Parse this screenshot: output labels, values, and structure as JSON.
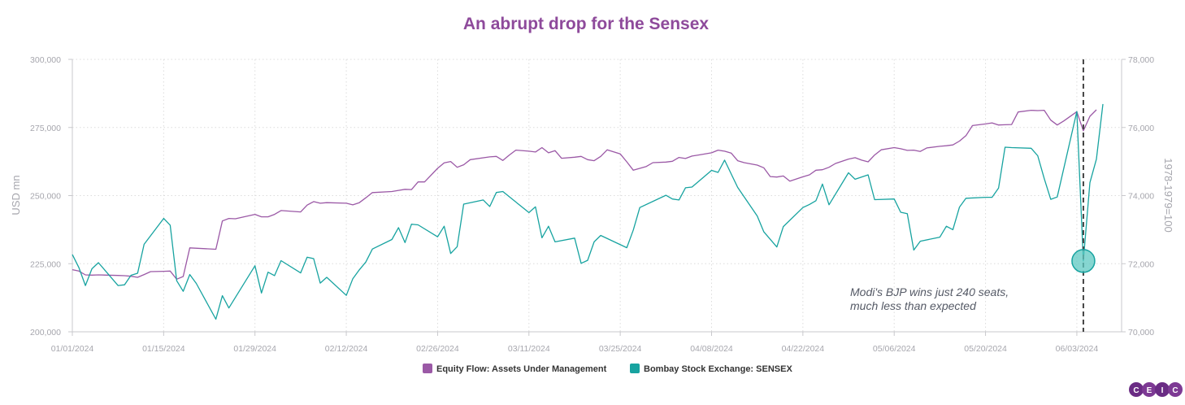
{
  "chart_data": {
    "type": "line",
    "title": "An abrupt drop for the Sensex",
    "ylabel_left": "USD mn",
    "ylabel_right": "1978-1979=100",
    "ylim_left": [
      200000,
      300000
    ],
    "ylim_right": [
      70000,
      78000
    ],
    "yticks_left": [
      "200,000",
      "225,000",
      "250,000",
      "275,000",
      "300,000"
    ],
    "yticks_right": [
      "70,000",
      "72,000",
      "74,000",
      "76,000",
      "78,000"
    ],
    "xlim": [
      "2024-01-01",
      "2024-06-06"
    ],
    "xticks": [
      {
        "date": "2024-01-01",
        "label": "01/01/2024"
      },
      {
        "date": "2024-01-15",
        "label": "01/15/2024"
      },
      {
        "date": "2024-01-29",
        "label": "01/29/2024"
      },
      {
        "date": "2024-02-12",
        "label": "02/12/2024"
      },
      {
        "date": "2024-02-26",
        "label": "02/26/2024"
      },
      {
        "date": "2024-03-11",
        "label": "03/11/2024"
      },
      {
        "date": "2024-03-25",
        "label": "03/25/2024"
      },
      {
        "date": "2024-04-08",
        "label": "04/08/2024"
      },
      {
        "date": "2024-04-22",
        "label": "04/22/2024"
      },
      {
        "date": "2024-05-06",
        "label": "05/06/2024"
      },
      {
        "date": "2024-05-20",
        "label": "05/20/2024"
      },
      {
        "date": "2024-06-03",
        "label": "06/03/2024"
      }
    ],
    "grid": true,
    "legend_position": "bottom-center",
    "series": [
      {
        "name": "Equity Flow: Assets Under Management",
        "color": "#9b59a6",
        "axis": "left",
        "points": [
          [
            "2024-01-01",
            222800
          ],
          [
            "2024-01-02",
            222300
          ],
          [
            "2024-01-03",
            220900
          ],
          [
            "2024-01-04",
            220800
          ],
          [
            "2024-01-05",
            220900
          ],
          [
            "2024-01-08",
            220700
          ],
          [
            "2024-01-09",
            220600
          ],
          [
            "2024-01-10",
            220400
          ],
          [
            "2024-01-11",
            220000
          ],
          [
            "2024-01-12",
            221000
          ],
          [
            "2024-01-13",
            222100
          ],
          [
            "2024-01-15",
            222200
          ],
          [
            "2024-01-16",
            222300
          ],
          [
            "2024-01-17",
            219300
          ],
          [
            "2024-01-18",
            220300
          ],
          [
            "2024-01-19",
            230800
          ],
          [
            "2024-01-23",
            230300
          ],
          [
            "2024-01-24",
            240700
          ],
          [
            "2024-01-25",
            241600
          ],
          [
            "2024-01-26",
            241500
          ],
          [
            "2024-01-29",
            243100
          ],
          [
            "2024-01-30",
            242200
          ],
          [
            "2024-01-31",
            242200
          ],
          [
            "2024-02-01",
            243100
          ],
          [
            "2024-02-02",
            244500
          ],
          [
            "2024-02-05",
            244000
          ],
          [
            "2024-02-06",
            246500
          ],
          [
            "2024-02-07",
            247800
          ],
          [
            "2024-02-08",
            247200
          ],
          [
            "2024-02-09",
            247400
          ],
          [
            "2024-02-12",
            247200
          ],
          [
            "2024-02-13",
            246600
          ],
          [
            "2024-02-14",
            247400
          ],
          [
            "2024-02-15",
            249200
          ],
          [
            "2024-02-16",
            251100
          ],
          [
            "2024-02-19",
            251500
          ],
          [
            "2024-02-20",
            251900
          ],
          [
            "2024-02-21",
            252300
          ],
          [
            "2024-02-22",
            252200
          ],
          [
            "2024-02-23",
            255000
          ],
          [
            "2024-02-24",
            255000
          ],
          [
            "2024-02-26",
            260000
          ],
          [
            "2024-02-27",
            262000
          ],
          [
            "2024-02-28",
            262500
          ],
          [
            "2024-02-29",
            260400
          ],
          [
            "2024-03-01",
            261300
          ],
          [
            "2024-03-02",
            263200
          ],
          [
            "2024-03-05",
            264200
          ],
          [
            "2024-03-06",
            264400
          ],
          [
            "2024-03-07",
            262900
          ],
          [
            "2024-03-08",
            264900
          ],
          [
            "2024-03-09",
            266700
          ],
          [
            "2024-03-11",
            266300
          ],
          [
            "2024-03-12",
            266000
          ],
          [
            "2024-03-13",
            267600
          ],
          [
            "2024-03-14",
            265700
          ],
          [
            "2024-03-15",
            266500
          ],
          [
            "2024-03-16",
            263700
          ],
          [
            "2024-03-18",
            264100
          ],
          [
            "2024-03-19",
            264400
          ],
          [
            "2024-03-20",
            263200
          ],
          [
            "2024-03-21",
            262800
          ],
          [
            "2024-03-22",
            264400
          ],
          [
            "2024-03-23",
            266800
          ],
          [
            "2024-03-25",
            265300
          ],
          [
            "2024-03-26",
            262400
          ],
          [
            "2024-03-27",
            259300
          ],
          [
            "2024-03-28",
            260000
          ],
          [
            "2024-03-29",
            260700
          ],
          [
            "2024-03-30",
            262100
          ],
          [
            "2024-04-01",
            262300
          ],
          [
            "2024-04-02",
            262600
          ],
          [
            "2024-04-03",
            264000
          ],
          [
            "2024-04-04",
            263600
          ],
          [
            "2024-04-05",
            264500
          ],
          [
            "2024-04-06",
            264900
          ],
          [
            "2024-04-08",
            265700
          ],
          [
            "2024-04-09",
            266700
          ],
          [
            "2024-04-10",
            266300
          ],
          [
            "2024-04-11",
            265600
          ],
          [
            "2024-04-12",
            262800
          ],
          [
            "2024-04-13",
            262100
          ],
          [
            "2024-04-15",
            261200
          ],
          [
            "2024-04-16",
            260200
          ],
          [
            "2024-04-17",
            257000
          ],
          [
            "2024-04-18",
            256800
          ],
          [
            "2024-04-19",
            257200
          ],
          [
            "2024-04-20",
            255300
          ],
          [
            "2024-04-22",
            256900
          ],
          [
            "2024-04-23",
            257600
          ],
          [
            "2024-04-24",
            259300
          ],
          [
            "2024-04-25",
            259500
          ],
          [
            "2024-04-26",
            260400
          ],
          [
            "2024-04-27",
            261800
          ],
          [
            "2024-04-29",
            263400
          ],
          [
            "2024-04-30",
            263900
          ],
          [
            "2024-05-01",
            263000
          ],
          [
            "2024-05-02",
            262400
          ],
          [
            "2024-05-03",
            264900
          ],
          [
            "2024-05-04",
            266800
          ],
          [
            "2024-05-06",
            267600
          ],
          [
            "2024-05-07",
            267200
          ],
          [
            "2024-05-08",
            266600
          ],
          [
            "2024-05-09",
            266700
          ],
          [
            "2024-05-10",
            266200
          ],
          [
            "2024-05-11",
            267500
          ],
          [
            "2024-05-13",
            268100
          ],
          [
            "2024-05-14",
            268300
          ],
          [
            "2024-05-15",
            268600
          ],
          [
            "2024-05-16",
            270000
          ],
          [
            "2024-05-17",
            272000
          ],
          [
            "2024-05-18",
            275700
          ],
          [
            "2024-05-20",
            276300
          ],
          [
            "2024-05-21",
            276700
          ],
          [
            "2024-05-22",
            275900
          ],
          [
            "2024-05-23",
            276000
          ],
          [
            "2024-05-24",
            276100
          ],
          [
            "2024-05-25",
            280700
          ],
          [
            "2024-05-27",
            281300
          ],
          [
            "2024-05-28",
            281200
          ],
          [
            "2024-05-29",
            281300
          ],
          [
            "2024-05-30",
            277700
          ],
          [
            "2024-05-31",
            275900
          ],
          [
            "2024-06-01",
            277400
          ],
          [
            "2024-06-03",
            280800
          ],
          [
            "2024-06-04",
            273800
          ],
          [
            "2024-06-05",
            279100
          ],
          [
            "2024-06-06",
            281500
          ]
        ]
      },
      {
        "name": "Bombay Stock Exchange: SENSEX",
        "color": "#17a3a0",
        "axis": "right",
        "points": [
          [
            "2024-01-01",
            72270
          ],
          [
            "2024-01-02",
            71890
          ],
          [
            "2024-01-03",
            71360
          ],
          [
            "2024-01-04",
            71850
          ],
          [
            "2024-01-05",
            72030
          ],
          [
            "2024-01-08",
            71360
          ],
          [
            "2024-01-09",
            71380
          ],
          [
            "2024-01-10",
            71660
          ],
          [
            "2024-01-11",
            71720
          ],
          [
            "2024-01-12",
            72570
          ],
          [
            "2024-01-15",
            73330
          ],
          [
            "2024-01-16",
            73130
          ],
          [
            "2024-01-17",
            71500
          ],
          [
            "2024-01-18",
            71190
          ],
          [
            "2024-01-19",
            71680
          ],
          [
            "2024-01-20",
            71420
          ],
          [
            "2024-01-23",
            70370
          ],
          [
            "2024-01-24",
            71060
          ],
          [
            "2024-01-25",
            70700
          ],
          [
            "2024-01-29",
            71940
          ],
          [
            "2024-01-30",
            71140
          ],
          [
            "2024-01-31",
            71750
          ],
          [
            "2024-02-01",
            71650
          ],
          [
            "2024-02-02",
            72090
          ],
          [
            "2024-02-05",
            71730
          ],
          [
            "2024-02-06",
            72190
          ],
          [
            "2024-02-07",
            72150
          ],
          [
            "2024-02-08",
            71430
          ],
          [
            "2024-02-09",
            71600
          ],
          [
            "2024-02-12",
            71070
          ],
          [
            "2024-02-13",
            71560
          ],
          [
            "2024-02-14",
            71820
          ],
          [
            "2024-02-15",
            72050
          ],
          [
            "2024-02-16",
            72430
          ],
          [
            "2024-02-19",
            72710
          ],
          [
            "2024-02-20",
            73060
          ],
          [
            "2024-02-21",
            72620
          ],
          [
            "2024-02-22",
            73160
          ],
          [
            "2024-02-23",
            73140
          ],
          [
            "2024-02-26",
            72790
          ],
          [
            "2024-02-27",
            73100
          ],
          [
            "2024-02-28",
            72300
          ],
          [
            "2024-02-29",
            72500
          ],
          [
            "2024-03-01",
            73750
          ],
          [
            "2024-03-04",
            73870
          ],
          [
            "2024-03-05",
            73680
          ],
          [
            "2024-03-06",
            74090
          ],
          [
            "2024-03-07",
            74120
          ],
          [
            "2024-03-11",
            73500
          ],
          [
            "2024-03-12",
            73670
          ],
          [
            "2024-03-13",
            72760
          ],
          [
            "2024-03-14",
            73100
          ],
          [
            "2024-03-15",
            72640
          ],
          [
            "2024-03-18",
            72750
          ],
          [
            "2024-03-19",
            72010
          ],
          [
            "2024-03-20",
            72100
          ],
          [
            "2024-03-21",
            72640
          ],
          [
            "2024-03-22",
            72830
          ],
          [
            "2024-03-26",
            72470
          ],
          [
            "2024-03-27",
            72990
          ],
          [
            "2024-03-28",
            73650
          ],
          [
            "2024-04-01",
            74010
          ],
          [
            "2024-04-02",
            73900
          ],
          [
            "2024-04-03",
            73870
          ],
          [
            "2024-04-04",
            74230
          ],
          [
            "2024-04-05",
            74250
          ],
          [
            "2024-04-08",
            74740
          ],
          [
            "2024-04-09",
            74680
          ],
          [
            "2024-04-10",
            75040
          ],
          [
            "2024-04-12",
            74240
          ],
          [
            "2024-04-15",
            73400
          ],
          [
            "2024-04-16",
            72940
          ],
          [
            "2024-04-18",
            72490
          ],
          [
            "2024-04-19",
            73090
          ],
          [
            "2024-04-22",
            73650
          ],
          [
            "2024-04-23",
            73740
          ],
          [
            "2024-04-24",
            73850
          ],
          [
            "2024-04-25",
            74340
          ],
          [
            "2024-04-26",
            73730
          ],
          [
            "2024-04-29",
            74670
          ],
          [
            "2024-04-30",
            74480
          ],
          [
            "2024-05-02",
            74610
          ],
          [
            "2024-05-03",
            73880
          ],
          [
            "2024-05-06",
            73900
          ],
          [
            "2024-05-07",
            73510
          ],
          [
            "2024-05-08",
            73470
          ],
          [
            "2024-05-09",
            72400
          ],
          [
            "2024-05-10",
            72660
          ],
          [
            "2024-05-13",
            72780
          ],
          [
            "2024-05-14",
            73100
          ],
          [
            "2024-05-15",
            73000
          ],
          [
            "2024-05-16",
            73660
          ],
          [
            "2024-05-17",
            73920
          ],
          [
            "2024-05-20",
            73950
          ],
          [
            "2024-05-21",
            73950
          ],
          [
            "2024-05-22",
            74220
          ],
          [
            "2024-05-23",
            75420
          ],
          [
            "2024-05-24",
            75410
          ],
          [
            "2024-05-27",
            75390
          ],
          [
            "2024-05-28",
            75170
          ],
          [
            "2024-05-29",
            74500
          ],
          [
            "2024-05-30",
            73890
          ],
          [
            "2024-05-31",
            73960
          ],
          [
            "2024-06-03",
            76470
          ],
          [
            "2024-06-04",
            72080
          ],
          [
            "2024-06-05",
            74380
          ],
          [
            "2024-06-06",
            75070
          ],
          [
            "2024-06-07",
            76690
          ]
        ]
      }
    ],
    "event_line": {
      "date": "2024-06-04"
    },
    "annotation": {
      "date": "2024-06-04",
      "value": 72080,
      "line1": "Modi's BJP wins just 240 seats,",
      "line2": "much less than expected"
    },
    "logo": "CEIC",
    "colors": {
      "title": "#8e4a9b",
      "grid": "#dcdcdc",
      "axis": "#c8c8cc",
      "event_line": "#444444",
      "marker_fill": "#5ec8c2",
      "marker_stroke": "#17a3a0",
      "logo": "#6a2c84"
    }
  }
}
